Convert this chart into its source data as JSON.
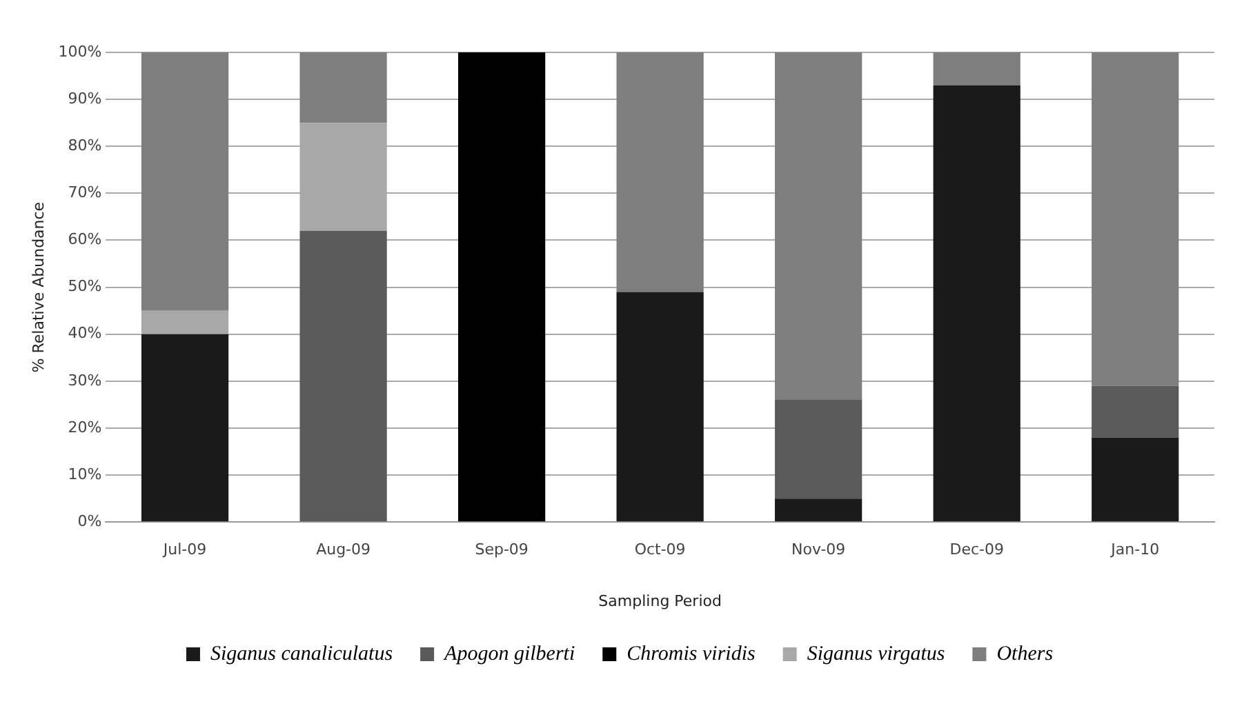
{
  "chart_data": {
    "type": "bar",
    "stacked": true,
    "xlabel": "Sampling Period",
    "ylabel": "% Relative Abundance",
    "categories": [
      "Jul-09",
      "Aug-09",
      "Sep-09",
      "Oct-09",
      "Nov-09",
      "Dec-09",
      "Jan-10"
    ],
    "series": [
      {
        "name": "Siganus canaliculatus",
        "color": "#1a1a1a",
        "values": [
          40,
          0,
          0,
          49,
          5,
          93,
          18
        ]
      },
      {
        "name": "Apogon gilberti",
        "color": "#5a5a5a",
        "values": [
          0,
          62,
          0,
          0,
          21,
          0,
          11
        ]
      },
      {
        "name": "Chromis viridis",
        "color": "#000000",
        "values": [
          0,
          0,
          100,
          0,
          0,
          0,
          0
        ]
      },
      {
        "name": "Siganus virgatus",
        "color": "#a8a8a8",
        "values": [
          5,
          23,
          0,
          0,
          0,
          0,
          0
        ]
      },
      {
        "name": "Others",
        "color": "#7e7e7e",
        "values": [
          55,
          15,
          0,
          51,
          74,
          7,
          71
        ]
      }
    ],
    "ylim": [
      0,
      100
    ],
    "yticks": [
      {
        "value": 0,
        "label": "0%"
      },
      {
        "value": 10,
        "label": "10%"
      },
      {
        "value": 20,
        "label": "20%"
      },
      {
        "value": 30,
        "label": "30%"
      },
      {
        "value": 40,
        "label": "40%"
      },
      {
        "value": 50,
        "label": "50%"
      },
      {
        "value": 60,
        "label": "60%"
      },
      {
        "value": 70,
        "label": "70%"
      },
      {
        "value": 80,
        "label": "80%"
      },
      {
        "value": 90,
        "label": "90%"
      },
      {
        "value": 100,
        "label": "100%"
      }
    ],
    "grid": "y",
    "legend": "bottom"
  }
}
